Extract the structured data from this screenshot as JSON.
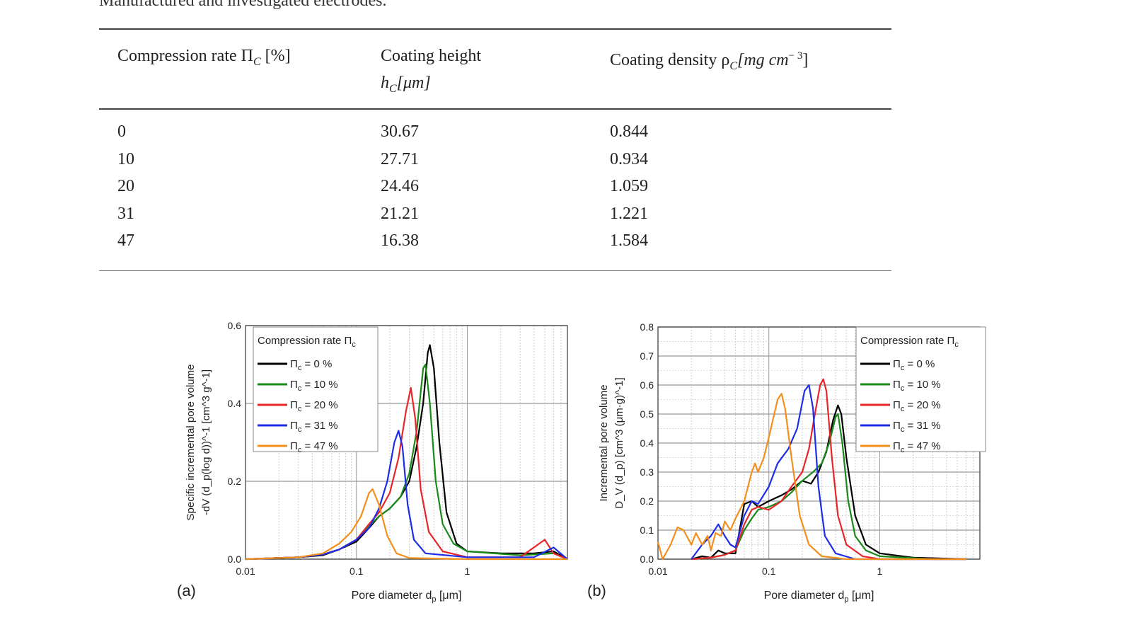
{
  "caption": "Manufactured and investigated electrodes.",
  "table": {
    "headers": [
      {
        "main": "Compression rate Π",
        "sub": "C",
        "tail": " [%]",
        "line2": ""
      },
      {
        "main": "Coating height",
        "sub": "",
        "tail": "",
        "line2": "h",
        "line2_sub": "C",
        "line2_tail": "[μm]"
      },
      {
        "main": "Coating density ρ",
        "sub": "C",
        "tail": "[mg cm",
        "sup": "− 3",
        "close": "]",
        "line2": ""
      }
    ],
    "rows": [
      [
        "0",
        "30.67",
        "0.844"
      ],
      [
        "10",
        "27.71",
        "0.934"
      ],
      [
        "20",
        "24.46",
        "1.059"
      ],
      [
        "31",
        "21.21",
        "1.221"
      ],
      [
        "47",
        "16.38",
        "1.584"
      ]
    ]
  },
  "colors": {
    "s0": "#000000",
    "s10": "#1a8a1a",
    "s20": "#e8262a",
    "s31": "#1e2ee6",
    "s47": "#f3901d"
  },
  "chart_data": [
    {
      "type": "line",
      "panel_label": "(a)",
      "xlabel": "Pore diameter d_p [μm]",
      "ylabel_line1": "Specific incremental pore volume",
      "ylabel_line2": "-dV (d_p(log d))^-1 [cm^3 g^-1]",
      "x_scale": "log",
      "xlim": [
        0.01,
        8
      ],
      "ylim": [
        0.0,
        0.6
      ],
      "x_ticks": [
        "0.01",
        "0.1",
        "1"
      ],
      "y_ticks": [
        "0.0",
        "0.2",
        "0.4",
        "0.6"
      ],
      "legend_title": "Compression rate Π",
      "legend_title_sub": "c",
      "legend_placement": "top-left",
      "series": [
        {
          "name": "Π = 0 %",
          "key": "0",
          "color": "#000000",
          "points": [
            [
              0.01,
              0
            ],
            [
              0.03,
              0.005
            ],
            [
              0.05,
              0.01
            ],
            [
              0.07,
              0.025
            ],
            [
              0.1,
              0.045
            ],
            [
              0.13,
              0.08
            ],
            [
              0.16,
              0.11
            ],
            [
              0.2,
              0.13
            ],
            [
              0.25,
              0.16
            ],
            [
              0.3,
              0.2
            ],
            [
              0.35,
              0.29
            ],
            [
              0.4,
              0.4
            ],
            [
              0.44,
              0.53
            ],
            [
              0.46,
              0.55
            ],
            [
              0.5,
              0.49
            ],
            [
              0.56,
              0.3
            ],
            [
              0.65,
              0.12
            ],
            [
              0.8,
              0.04
            ],
            [
              1,
              0.02
            ],
            [
              2,
              0.015
            ],
            [
              4,
              0.015
            ],
            [
              6,
              0.02
            ],
            [
              8,
              0
            ]
          ]
        },
        {
          "name": "Π = 10 %",
          "key": "10",
          "color": "#1a8a1a",
          "points": [
            [
              0.01,
              0
            ],
            [
              0.03,
              0.005
            ],
            [
              0.05,
              0.012
            ],
            [
              0.07,
              0.025
            ],
            [
              0.1,
              0.05
            ],
            [
              0.13,
              0.085
            ],
            [
              0.16,
              0.11
            ],
            [
              0.2,
              0.13
            ],
            [
              0.25,
              0.16
            ],
            [
              0.3,
              0.22
            ],
            [
              0.35,
              0.33
            ],
            [
              0.4,
              0.49
            ],
            [
              0.42,
              0.5
            ],
            [
              0.46,
              0.4
            ],
            [
              0.52,
              0.2
            ],
            [
              0.6,
              0.09
            ],
            [
              0.75,
              0.04
            ],
            [
              1,
              0.02
            ],
            [
              3,
              0.01
            ],
            [
              6,
              0.015
            ],
            [
              8,
              0
            ]
          ]
        },
        {
          "name": "Π = 20 %",
          "key": "20",
          "color": "#e8262a",
          "points": [
            [
              0.01,
              0
            ],
            [
              0.03,
              0.005
            ],
            [
              0.05,
              0.012
            ],
            [
              0.07,
              0.025
            ],
            [
              0.1,
              0.05
            ],
            [
              0.13,
              0.09
            ],
            [
              0.16,
              0.12
            ],
            [
              0.2,
              0.17
            ],
            [
              0.24,
              0.26
            ],
            [
              0.28,
              0.38
            ],
            [
              0.31,
              0.44
            ],
            [
              0.34,
              0.36
            ],
            [
              0.38,
              0.18
            ],
            [
              0.45,
              0.07
            ],
            [
              0.6,
              0.02
            ],
            [
              1,
              0.005
            ],
            [
              3,
              0.005
            ],
            [
              5,
              0.05
            ],
            [
              6,
              0.015
            ],
            [
              8,
              0
            ]
          ]
        },
        {
          "name": "Π = 31 %",
          "key": "31",
          "color": "#1e2ee6",
          "points": [
            [
              0.01,
              0
            ],
            [
              0.03,
              0.005
            ],
            [
              0.05,
              0.012
            ],
            [
              0.07,
              0.025
            ],
            [
              0.1,
              0.05
            ],
            [
              0.13,
              0.08
            ],
            [
              0.16,
              0.13
            ],
            [
              0.19,
              0.2
            ],
            [
              0.22,
              0.3
            ],
            [
              0.24,
              0.33
            ],
            [
              0.26,
              0.29
            ],
            [
              0.29,
              0.14
            ],
            [
              0.33,
              0.05
            ],
            [
              0.42,
              0.015
            ],
            [
              1,
              0.005
            ],
            [
              4,
              0.005
            ],
            [
              6,
              0.03
            ],
            [
              8,
              0
            ]
          ]
        },
        {
          "name": "Π = 47 %",
          "key": "47",
          "color": "#f3901d",
          "points": [
            [
              0.01,
              0
            ],
            [
              0.03,
              0.005
            ],
            [
              0.05,
              0.015
            ],
            [
              0.07,
              0.04
            ],
            [
              0.09,
              0.07
            ],
            [
              0.11,
              0.11
            ],
            [
              0.13,
              0.17
            ],
            [
              0.14,
              0.18
            ],
            [
              0.16,
              0.14
            ],
            [
              0.19,
              0.06
            ],
            [
              0.23,
              0.015
            ],
            [
              0.3,
              0.003
            ],
            [
              1,
              0
            ],
            [
              8,
              0
            ]
          ]
        }
      ]
    },
    {
      "type": "line",
      "panel_label": "(b)",
      "xlabel": "Pore diameter d_p [μm]",
      "ylabel_line1": "Incremental pore volume",
      "ylabel_line2": "D_V (d_p) [cm^3 (μm·g)^-1]",
      "x_scale": "log",
      "xlim": [
        0.01,
        8
      ],
      "ylim": [
        0.0,
        0.8
      ],
      "x_ticks": [
        "0.01",
        "0.1",
        "1"
      ],
      "y_ticks": [
        "0.0",
        "0.1",
        "0.2",
        "0.3",
        "0.4",
        "0.5",
        "0.6",
        "0.7",
        "0.8"
      ],
      "legend_title": "Compression rate Π",
      "legend_title_sub": "c",
      "legend_placement": "top-right",
      "series": [
        {
          "name": "Π = 0 %",
          "key": "0",
          "color": "#000000",
          "points": [
            [
              0.02,
              0
            ],
            [
              0.025,
              0.01
            ],
            [
              0.03,
              0.005
            ],
            [
              0.035,
              0.03
            ],
            [
              0.04,
              0.02
            ],
            [
              0.05,
              0.02
            ],
            [
              0.06,
              0.19
            ],
            [
              0.07,
              0.2
            ],
            [
              0.08,
              0.18
            ],
            [
              0.1,
              0.2
            ],
            [
              0.13,
              0.22
            ],
            [
              0.16,
              0.24
            ],
            [
              0.2,
              0.27
            ],
            [
              0.24,
              0.26
            ],
            [
              0.28,
              0.3
            ],
            [
              0.33,
              0.37
            ],
            [
              0.38,
              0.48
            ],
            [
              0.42,
              0.53
            ],
            [
              0.45,
              0.5
            ],
            [
              0.5,
              0.35
            ],
            [
              0.6,
              0.15
            ],
            [
              0.75,
              0.05
            ],
            [
              1,
              0.02
            ],
            [
              2,
              0.005
            ],
            [
              6,
              0
            ]
          ]
        },
        {
          "name": "Π = 10 %",
          "key": "10",
          "color": "#1a8a1a",
          "points": [
            [
              0.02,
              0
            ],
            [
              0.03,
              0.005
            ],
            [
              0.04,
              0.015
            ],
            [
              0.05,
              0.03
            ],
            [
              0.06,
              0.1
            ],
            [
              0.07,
              0.14
            ],
            [
              0.08,
              0.17
            ],
            [
              0.1,
              0.18
            ],
            [
              0.13,
              0.2
            ],
            [
              0.16,
              0.23
            ],
            [
              0.2,
              0.27
            ],
            [
              0.25,
              0.3
            ],
            [
              0.3,
              0.33
            ],
            [
              0.35,
              0.4
            ],
            [
              0.4,
              0.49
            ],
            [
              0.42,
              0.5
            ],
            [
              0.46,
              0.4
            ],
            [
              0.52,
              0.2
            ],
            [
              0.6,
              0.08
            ],
            [
              0.75,
              0.03
            ],
            [
              1,
              0.01
            ],
            [
              3,
              0
            ],
            [
              6,
              0
            ]
          ]
        },
        {
          "name": "Π = 20 %",
          "key": "20",
          "color": "#e8262a",
          "points": [
            [
              0.02,
              0
            ],
            [
              0.03,
              0.005
            ],
            [
              0.04,
              0.015
            ],
            [
              0.05,
              0.03
            ],
            [
              0.06,
              0.12
            ],
            [
              0.07,
              0.17
            ],
            [
              0.08,
              0.18
            ],
            [
              0.1,
              0.17
            ],
            [
              0.13,
              0.2
            ],
            [
              0.16,
              0.25
            ],
            [
              0.2,
              0.3
            ],
            [
              0.23,
              0.38
            ],
            [
              0.26,
              0.5
            ],
            [
              0.29,
              0.6
            ],
            [
              0.31,
              0.62
            ],
            [
              0.33,
              0.58
            ],
            [
              0.37,
              0.35
            ],
            [
              0.42,
              0.15
            ],
            [
              0.5,
              0.05
            ],
            [
              0.7,
              0.01
            ],
            [
              1,
              0
            ],
            [
              6,
              0
            ]
          ]
        },
        {
          "name": "Π = 31 %",
          "key": "31",
          "color": "#1e2ee6",
          "points": [
            [
              0.02,
              0
            ],
            [
              0.025,
              0.05
            ],
            [
              0.03,
              0.08
            ],
            [
              0.035,
              0.12
            ],
            [
              0.04,
              0.08
            ],
            [
              0.045,
              0.05
            ],
            [
              0.05,
              0.04
            ],
            [
              0.06,
              0.15
            ],
            [
              0.07,
              0.2
            ],
            [
              0.08,
              0.19
            ],
            [
              0.1,
              0.25
            ],
            [
              0.12,
              0.33
            ],
            [
              0.15,
              0.38
            ],
            [
              0.18,
              0.45
            ],
            [
              0.21,
              0.58
            ],
            [
              0.23,
              0.6
            ],
            [
              0.25,
              0.52
            ],
            [
              0.28,
              0.25
            ],
            [
              0.32,
              0.08
            ],
            [
              0.4,
              0.02
            ],
            [
              0.6,
              0
            ],
            [
              6,
              0
            ]
          ]
        },
        {
          "name": "Π = 47 %",
          "key": "47",
          "color": "#f3901d",
          "points": [
            [
              0.01,
              0.06
            ],
            [
              0.011,
              0.0
            ],
            [
              0.013,
              0.05
            ],
            [
              0.015,
              0.11
            ],
            [
              0.017,
              0.1
            ],
            [
              0.02,
              0.05
            ],
            [
              0.022,
              0.09
            ],
            [
              0.025,
              0.05
            ],
            [
              0.028,
              0.08
            ],
            [
              0.03,
              0.03
            ],
            [
              0.033,
              0.09
            ],
            [
              0.037,
              0.08
            ],
            [
              0.04,
              0.13
            ],
            [
              0.045,
              0.1
            ],
            [
              0.05,
              0.14
            ],
            [
              0.06,
              0.2
            ],
            [
              0.07,
              0.3
            ],
            [
              0.075,
              0.33
            ],
            [
              0.08,
              0.3
            ],
            [
              0.09,
              0.35
            ],
            [
              0.1,
              0.42
            ],
            [
              0.12,
              0.55
            ],
            [
              0.13,
              0.57
            ],
            [
              0.14,
              0.52
            ],
            [
              0.16,
              0.35
            ],
            [
              0.19,
              0.15
            ],
            [
              0.23,
              0.05
            ],
            [
              0.3,
              0.01
            ],
            [
              0.5,
              0
            ],
            [
              6,
              0
            ]
          ]
        }
      ]
    }
  ]
}
